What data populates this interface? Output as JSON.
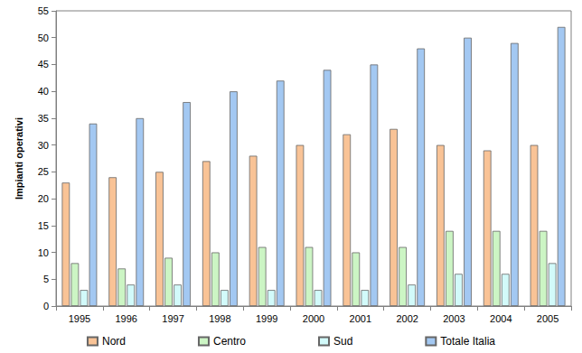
{
  "chart_data": {
    "type": "bar",
    "y_label": "Impianti operativi",
    "categories": [
      "1995",
      "1996",
      "1997",
      "1998",
      "1999",
      "2000",
      "2001",
      "2002",
      "2003",
      "2004",
      "2005"
    ],
    "series": [
      {
        "name": "Nord",
        "color": "#f9c396",
        "values": [
          23,
          24,
          25,
          27,
          28,
          30,
          32,
          33,
          30,
          29,
          30
        ]
      },
      {
        "name": "Centro",
        "color": "#ccf5c4",
        "values": [
          8,
          7,
          9,
          10,
          11,
          11,
          10,
          11,
          14,
          14,
          14
        ]
      },
      {
        "name": "Sud",
        "color": "#d2fafa",
        "values": [
          3,
          4,
          4,
          3,
          3,
          3,
          3,
          4,
          6,
          6,
          8
        ]
      },
      {
        "name": "Totale Italia",
        "color": "#a3c8f2",
        "values": [
          34,
          35,
          38,
          40,
          42,
          44,
          45,
          48,
          50,
          49,
          52
        ]
      }
    ],
    "ylim": [
      0,
      55
    ],
    "yticks": [
      0,
      5,
      10,
      15,
      20,
      25,
      30,
      35,
      40,
      45,
      50,
      55
    ],
    "grid": false,
    "legend": "bottom"
  }
}
